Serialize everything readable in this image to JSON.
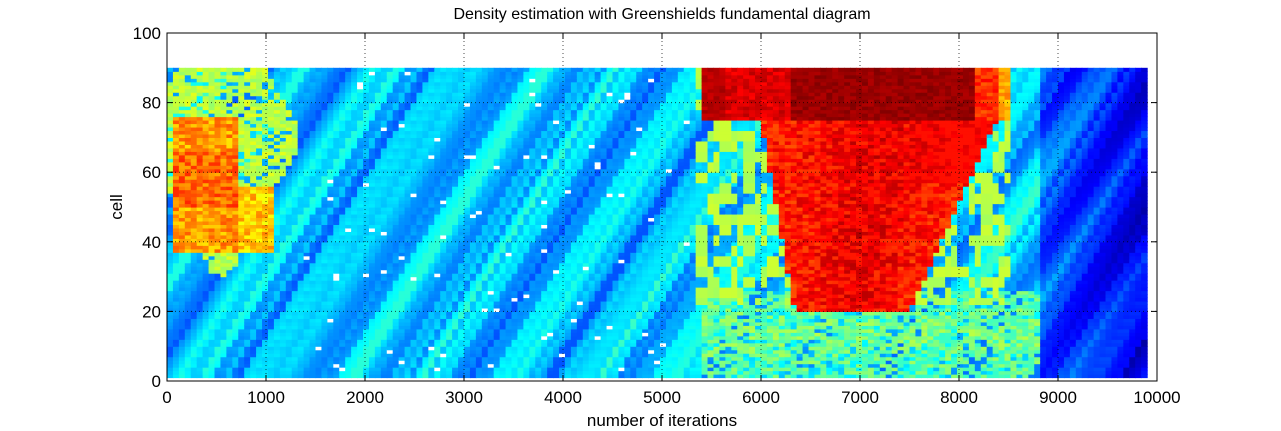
{
  "chart_data": {
    "type": "heatmap",
    "title": "Density estimation with Greenshields fundamental diagram",
    "xlabel": "number of iterations",
    "ylabel": "cell",
    "xlim": [
      0,
      10000
    ],
    "ylim": [
      0,
      100
    ],
    "xticks": [
      0,
      1000,
      2000,
      3000,
      4000,
      5000,
      6000,
      7000,
      8000,
      9000,
      10000
    ],
    "yticks": [
      0,
      20,
      40,
      60,
      80,
      100
    ],
    "grid": true,
    "colormap": "jet",
    "data_extent": {
      "x": [
        0,
        9900
      ],
      "y": [
        1,
        90
      ]
    },
    "regions": [
      {
        "name": "background",
        "level": 0.32
      },
      {
        "name": "early-congestion-a",
        "x": [
          50,
          700
        ],
        "y": [
          37,
          76
        ],
        "level": 0.72
      },
      {
        "name": "early-congestion-b",
        "x": [
          700,
          1100
        ],
        "y": [
          37,
          56
        ],
        "level": 0.68
      },
      {
        "name": "early-fringe",
        "x": [
          0,
          1300
        ],
        "y": [
          30,
          90
        ],
        "level": 0.55
      },
      {
        "name": "upper-dark-red",
        "x": [
          5400,
          8500
        ],
        "y": [
          75,
          90
        ],
        "level": 0.95
      },
      {
        "name": "wedge-main",
        "x": [
          6200,
          7500
        ],
        "y": [
          20,
          75
        ],
        "level": 0.9
      },
      {
        "name": "wedge-front",
        "x": [
          7500,
          8400
        ],
        "y": [
          57,
          75
        ],
        "level": 0.86
      },
      {
        "name": "lower-yellow-band",
        "x": [
          5400,
          8900
        ],
        "y": [
          1,
          26
        ],
        "level": 0.5
      },
      {
        "name": "right-blue",
        "x": [
          8800,
          9900
        ],
        "y": [
          1,
          90
        ],
        "level": 0.18
      }
    ]
  }
}
